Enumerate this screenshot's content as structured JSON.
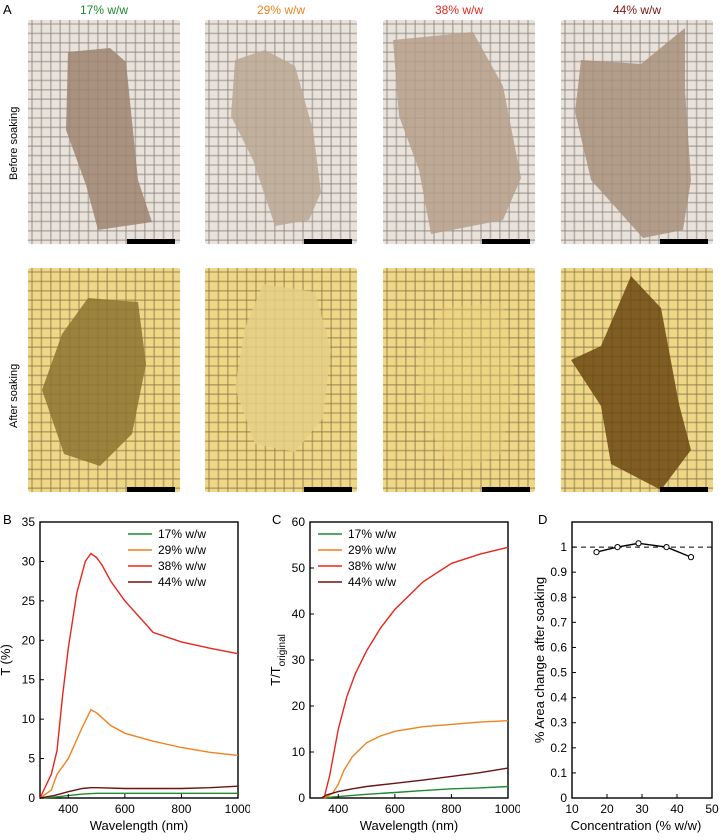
{
  "panels": {
    "a": "A",
    "b": "B",
    "c": "C",
    "d": "D"
  },
  "photos": {
    "columns": [
      {
        "label": "17% w/w",
        "color": "#1f8a2e"
      },
      {
        "label": "29% w/w",
        "color": "#f0821e"
      },
      {
        "label": "38% w/w",
        "color": "#e8261c"
      },
      {
        "label": "44% w/w",
        "color": "#7a1212"
      }
    ],
    "rows": [
      "Before soaking",
      "After soaking"
    ]
  },
  "chart_data": [
    {
      "type": "line",
      "xlabel": "Wavelength (nm)",
      "ylabel": "T (%)",
      "xlim": [
        300,
        1000
      ],
      "ylim": [
        0,
        35
      ],
      "xticks": [
        "400",
        "600",
        "800",
        "1000"
      ],
      "yticks": [
        "0",
        "5",
        "10",
        "15",
        "20",
        "25",
        "30",
        "35"
      ],
      "legend": "top-right",
      "series": [
        {
          "name": "17% w/w",
          "color": "#1f8a2e",
          "x": [
            300,
            350,
            400,
            450,
            500,
            600,
            700,
            800,
            900,
            1000
          ],
          "y": [
            0,
            0.1,
            0.3,
            0.5,
            0.6,
            0.6,
            0.6,
            0.6,
            0.6,
            0.6
          ]
        },
        {
          "name": "29% w/w",
          "color": "#f0821e",
          "x": [
            300,
            340,
            360,
            400,
            450,
            480,
            500,
            550,
            600,
            700,
            800,
            900,
            1000
          ],
          "y": [
            0,
            1,
            3,
            5,
            9,
            11.2,
            10.8,
            9.2,
            8.2,
            7.2,
            6.4,
            5.8,
            5.4
          ]
        },
        {
          "name": "38% w/w",
          "color": "#e8261c",
          "x": [
            300,
            340,
            360,
            380,
            400,
            430,
            460,
            480,
            500,
            520,
            550,
            600,
            650,
            700,
            800,
            900,
            1000
          ],
          "y": [
            0,
            3,
            6,
            13,
            19,
            26,
            30,
            31,
            30.5,
            29.5,
            27.5,
            25,
            23,
            21,
            19.8,
            19,
            18.3
          ]
        },
        {
          "name": "44% w/w",
          "color": "#6b1414",
          "x": [
            300,
            350,
            400,
            450,
            480,
            500,
            600,
            700,
            800,
            900,
            1000
          ],
          "y": [
            0,
            0.3,
            0.8,
            1.2,
            1.3,
            1.3,
            1.2,
            1.2,
            1.2,
            1.3,
            1.5
          ]
        }
      ]
    },
    {
      "type": "line",
      "xlabel": "Wavelength (nm)",
      "ylabel": "T/T",
      "ylabel_sub": "original",
      "xlim": [
        300,
        1000
      ],
      "ylim": [
        0,
        60
      ],
      "xticks": [
        "400",
        "600",
        "800",
        "1000"
      ],
      "yticks": [
        "0",
        "10",
        "20",
        "30",
        "40",
        "50",
        "60"
      ],
      "legend": "top-left",
      "series": [
        {
          "name": "17% w/w",
          "color": "#1f8a2e",
          "x": [
            340,
            400,
            500,
            600,
            700,
            800,
            900,
            1000
          ],
          "y": [
            0,
            0.3,
            0.8,
            1.2,
            1.6,
            2,
            2.2,
            2.5
          ]
        },
        {
          "name": "29% w/w",
          "color": "#f0821e",
          "x": [
            350,
            380,
            400,
            420,
            450,
            500,
            550,
            600,
            700,
            800,
            900,
            1000
          ],
          "y": [
            0,
            1,
            3,
            6,
            9,
            12,
            13.5,
            14.5,
            15.5,
            16,
            16.5,
            16.8
          ]
        },
        {
          "name": "38% w/w",
          "color": "#e8261c",
          "x": [
            350,
            370,
            400,
            430,
            460,
            500,
            550,
            600,
            650,
            700,
            800,
            900,
            1000
          ],
          "y": [
            0,
            5,
            15,
            22,
            27,
            32,
            37,
            41,
            44,
            47,
            51,
            53,
            54.5
          ]
        },
        {
          "name": "44% w/w",
          "color": "#6b1414",
          "x": [
            340,
            360,
            400,
            450,
            500,
            600,
            700,
            800,
            900,
            1000
          ],
          "y": [
            0,
            0.7,
            1.4,
            2,
            2.5,
            3.2,
            3.9,
            4.7,
            5.5,
            6.5
          ]
        }
      ]
    },
    {
      "type": "scatter",
      "xlabel": "Concentration (% w/w)",
      "ylabel": "% Area change after soaking",
      "xlim": [
        10,
        50
      ],
      "ylim": [
        0,
        1.1
      ],
      "xticks": [
        "10",
        "20",
        "30",
        "40",
        "50"
      ],
      "yticks": [
        "0",
        "0.1",
        "0.2",
        "0.3",
        "0.4",
        "0.5",
        "0.6",
        "0.7",
        "0.8",
        "0.9",
        "1"
      ],
      "reference_line": 1,
      "x": [
        17,
        23,
        29,
        37,
        44
      ],
      "y": [
        0.98,
        1.0,
        1.015,
        1.0,
        0.96
      ]
    }
  ]
}
